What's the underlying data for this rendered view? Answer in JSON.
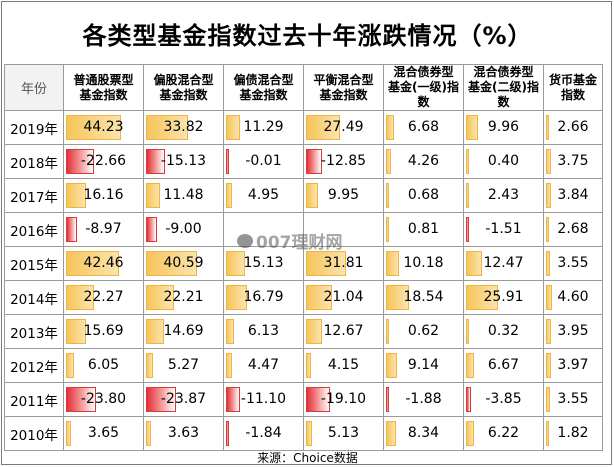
{
  "title": "各类型基金指数过去十年涨跌情况（%）",
  "year_header": "年份",
  "source": "来源：Choice数据",
  "watermark": "007理财网",
  "colors": {
    "positive": "#f6c55a",
    "negative": "#e2323a",
    "border": "#9a9a9a"
  },
  "chart_data": {
    "type": "table",
    "title": "各类型基金指数过去十年涨跌情况（%）",
    "categories": [
      "2019年",
      "2018年",
      "2017年",
      "2016年",
      "2015年",
      "2014年",
      "2013年",
      "2012年",
      "2011年",
      "2010年"
    ],
    "series": [
      {
        "name": "普通股票型基金指数",
        "header_lines": [
          "普通股票型",
          "基金指数"
        ],
        "values": [
          "44.23",
          "-22.66",
          "16.16",
          "-8.97",
          "42.46",
          "22.27",
          "15.69",
          "6.05",
          "-23.80",
          "3.65"
        ]
      },
      {
        "name": "偏股混合型基金指数",
        "header_lines": [
          "偏股混合型",
          "基金指数"
        ],
        "values": [
          "33.82",
          "-15.13",
          "11.48",
          "-9.00",
          "40.59",
          "22.21",
          "14.69",
          "5.27",
          "-23.87",
          "3.63"
        ]
      },
      {
        "name": "偏债混合型基金指数",
        "header_lines": [
          "偏债混合型",
          "基金指数"
        ],
        "values": [
          "11.29",
          "-0.01",
          "4.95",
          "",
          "15.13",
          "16.79",
          "6.13",
          "4.47",
          "-11.10",
          "-1.84"
        ]
      },
      {
        "name": "平衡混合型基金指数",
        "header_lines": [
          "平衡混合型",
          "基金指数"
        ],
        "values": [
          "27.49",
          "-12.85",
          "9.95",
          "",
          "31.81",
          "21.04",
          "12.67",
          "4.15",
          "-19.10",
          "5.13"
        ]
      },
      {
        "name": "混合债券型基金(一级)指数",
        "header_lines": [
          "混合债券型",
          "基金(一级)指",
          "数"
        ],
        "values": [
          "6.68",
          "4.26",
          "0.68",
          "0.81",
          "10.18",
          "18.54",
          "0.62",
          "9.14",
          "-1.88",
          "8.34"
        ]
      },
      {
        "name": "混合债券型基金(二级)指数",
        "header_lines": [
          "混合债券型",
          "基金(二级)指",
          "数"
        ],
        "values": [
          "9.96",
          "0.40",
          "2.43",
          "-1.51",
          "12.47",
          "25.91",
          "0.32",
          "6.67",
          "-3.85",
          "6.22"
        ]
      },
      {
        "name": "货币基金指数",
        "header_lines": [
          "货币基金",
          "指数"
        ],
        "values": [
          "2.66",
          "3.75",
          "3.84",
          "2.68",
          "3.55",
          "4.60",
          "3.95",
          "3.97",
          "3.55",
          "1.82"
        ]
      }
    ]
  }
}
